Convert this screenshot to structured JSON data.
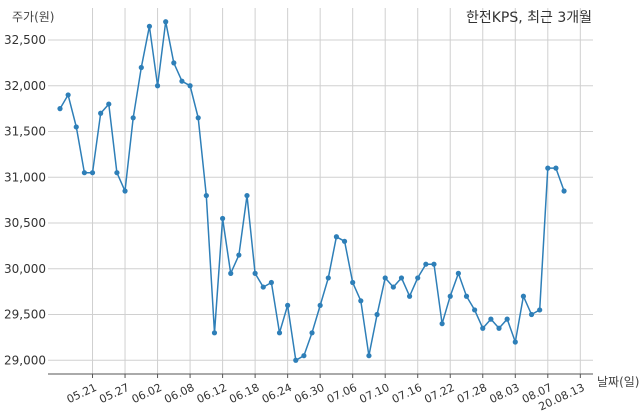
{
  "chart_data": {
    "type": "line",
    "title": "한전KPS, 최근 3개월",
    "ylabel": "주가(원)",
    "xlabel": "날짜(일)",
    "ylim": [
      28850,
      32850
    ],
    "yticks": [
      29000,
      29500,
      30000,
      30500,
      31000,
      31500,
      32000,
      32500
    ],
    "ytick_labels": [
      "29,000",
      "29,500",
      "30,000",
      "30,500",
      "31,000",
      "31,500",
      "32,000",
      "32,500"
    ],
    "xtick_labels": [
      "05.21",
      "05.27",
      "06.02",
      "06.08",
      "06.12",
      "06.18",
      "06.24",
      "06.30",
      "07.06",
      "07.10",
      "07.16",
      "07.22",
      "07.28",
      "08.03",
      "08.07",
      "20.08.13"
    ],
    "xtick_positions": [
      4,
      8,
      12,
      16,
      20,
      24,
      28,
      32,
      36,
      40,
      44,
      48,
      52,
      56,
      60,
      64
    ],
    "grid": true,
    "series": [
      {
        "color": "#2e7fb8",
        "values": [
          31750,
          31900,
          31550,
          31050,
          31050,
          31700,
          31800,
          31050,
          30850,
          31650,
          32200,
          32650,
          32000,
          32700,
          32250,
          32050,
          32000,
          31650,
          30800,
          29300,
          30550,
          29950,
          30150,
          30800,
          29950,
          29800,
          29850,
          29300,
          29600,
          29000,
          29050,
          29300,
          29600,
          29900,
          30350,
          30300,
          29850,
          29650,
          29050,
          29500,
          29900,
          29800,
          29900,
          29700,
          29900,
          30050,
          30050,
          29400,
          29700,
          29950,
          29700,
          29550,
          29350,
          29450,
          29350,
          29450,
          29200,
          29700,
          29500,
          29550,
          31100,
          31100,
          30850
        ]
      }
    ]
  }
}
